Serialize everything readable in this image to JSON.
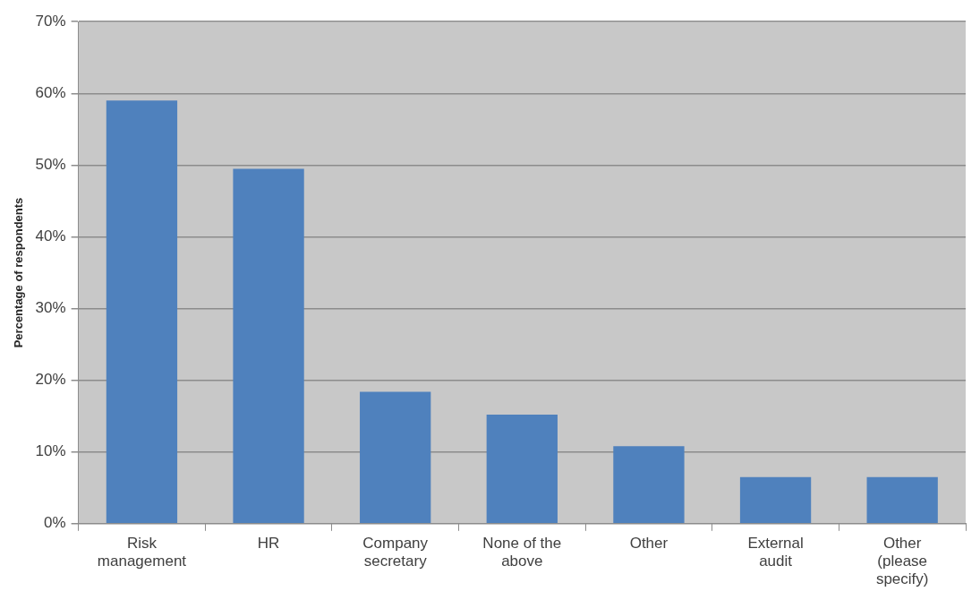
{
  "chart_data": {
    "type": "bar",
    "ylabel": "Percentage of respondents",
    "categories": [
      "Risk management",
      "HR",
      "Company secretary",
      "None of the above",
      "Other",
      "External audit",
      "Other (please specify)"
    ],
    "values": [
      59,
      49.5,
      18.4,
      15.2,
      10.8,
      6.5,
      6.5
    ],
    "color": "#4f81bd",
    "ylim": [
      0,
      70
    ],
    "yticks": [
      {
        "value": 0,
        "label": "0%"
      },
      {
        "value": 10,
        "label": "10%"
      },
      {
        "value": 20,
        "label": "20%"
      },
      {
        "value": 30,
        "label": "30%"
      },
      {
        "value": 40,
        "label": "40%"
      },
      {
        "value": 50,
        "label": "50%"
      },
      {
        "value": 60,
        "label": "60%"
      },
      {
        "value": 70,
        "label": "70%"
      }
    ],
    "grid": "y",
    "legend": false
  }
}
